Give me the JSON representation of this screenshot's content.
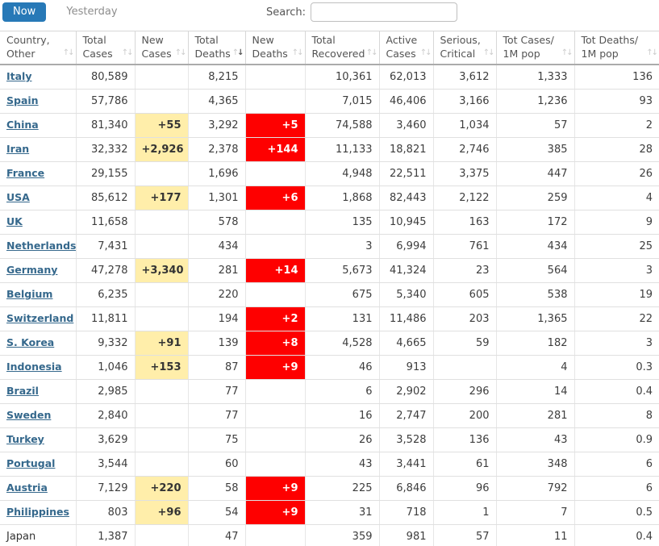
{
  "toolbar": {
    "now_label": "Now",
    "yesterday_label": "Yesterday",
    "search_label": "Search:",
    "search_value": ""
  },
  "colors": {
    "now_button": "#2779b7",
    "country_link": "#35688c",
    "new_cases_highlight": "#ffeeaa",
    "new_deaths_highlight": "#fe0000",
    "header_text": "#545454",
    "cell_text": "#3d3d3d"
  },
  "table": {
    "columns": [
      {
        "key": "country",
        "lines": [
          "Country,",
          "Other"
        ],
        "sort": "none"
      },
      {
        "key": "total_cases",
        "lines": [
          "Total",
          "Cases"
        ],
        "sort": "none"
      },
      {
        "key": "new_cases",
        "lines": [
          "New",
          "Cases"
        ],
        "sort": "none"
      },
      {
        "key": "total_deaths",
        "lines": [
          "Total",
          "Deaths"
        ],
        "sort": "desc"
      },
      {
        "key": "new_deaths",
        "lines": [
          "New",
          "Deaths"
        ],
        "sort": "none"
      },
      {
        "key": "total_recovered",
        "lines": [
          "Total",
          "Recovered"
        ],
        "sort": "none"
      },
      {
        "key": "active_cases",
        "lines": [
          "Active",
          "Cases"
        ],
        "sort": "none"
      },
      {
        "key": "serious_critical",
        "lines": [
          "Serious,",
          "Critical"
        ],
        "sort": "none"
      },
      {
        "key": "cases_per_1m",
        "lines": [
          "Tot Cases/",
          "1M pop"
        ],
        "sort": "none"
      },
      {
        "key": "deaths_per_1m",
        "lines": [
          "Tot Deaths/",
          "1M pop"
        ],
        "sort": "none"
      }
    ],
    "rows": [
      {
        "country": "Italy",
        "link": true,
        "total_cases": "80,589",
        "new_cases": "",
        "total_deaths": "8,215",
        "new_deaths": "",
        "total_recovered": "10,361",
        "active_cases": "62,013",
        "serious_critical": "3,612",
        "cases_per_1m": "1,333",
        "deaths_per_1m": "136"
      },
      {
        "country": "Spain",
        "link": true,
        "total_cases": "57,786",
        "new_cases": "",
        "total_deaths": "4,365",
        "new_deaths": "",
        "total_recovered": "7,015",
        "active_cases": "46,406",
        "serious_critical": "3,166",
        "cases_per_1m": "1,236",
        "deaths_per_1m": "93"
      },
      {
        "country": "China",
        "link": true,
        "total_cases": "81,340",
        "new_cases": "+55",
        "total_deaths": "3,292",
        "new_deaths": "+5",
        "total_recovered": "74,588",
        "active_cases": "3,460",
        "serious_critical": "1,034",
        "cases_per_1m": "57",
        "deaths_per_1m": "2"
      },
      {
        "country": "Iran",
        "link": true,
        "total_cases": "32,332",
        "new_cases": "+2,926",
        "total_deaths": "2,378",
        "new_deaths": "+144",
        "total_recovered": "11,133",
        "active_cases": "18,821",
        "serious_critical": "2,746",
        "cases_per_1m": "385",
        "deaths_per_1m": "28"
      },
      {
        "country": "France",
        "link": true,
        "total_cases": "29,155",
        "new_cases": "",
        "total_deaths": "1,696",
        "new_deaths": "",
        "total_recovered": "4,948",
        "active_cases": "22,511",
        "serious_critical": "3,375",
        "cases_per_1m": "447",
        "deaths_per_1m": "26"
      },
      {
        "country": "USA",
        "link": true,
        "total_cases": "85,612",
        "new_cases": "+177",
        "total_deaths": "1,301",
        "new_deaths": "+6",
        "total_recovered": "1,868",
        "active_cases": "82,443",
        "serious_critical": "2,122",
        "cases_per_1m": "259",
        "deaths_per_1m": "4"
      },
      {
        "country": "UK",
        "link": true,
        "total_cases": "11,658",
        "new_cases": "",
        "total_deaths": "578",
        "new_deaths": "",
        "total_recovered": "135",
        "active_cases": "10,945",
        "serious_critical": "163",
        "cases_per_1m": "172",
        "deaths_per_1m": "9"
      },
      {
        "country": "Netherlands",
        "link": true,
        "total_cases": "7,431",
        "new_cases": "",
        "total_deaths": "434",
        "new_deaths": "",
        "total_recovered": "3",
        "active_cases": "6,994",
        "serious_critical": "761",
        "cases_per_1m": "434",
        "deaths_per_1m": "25"
      },
      {
        "country": "Germany",
        "link": true,
        "total_cases": "47,278",
        "new_cases": "+3,340",
        "total_deaths": "281",
        "new_deaths": "+14",
        "total_recovered": "5,673",
        "active_cases": "41,324",
        "serious_critical": "23",
        "cases_per_1m": "564",
        "deaths_per_1m": "3"
      },
      {
        "country": "Belgium",
        "link": true,
        "total_cases": "6,235",
        "new_cases": "",
        "total_deaths": "220",
        "new_deaths": "",
        "total_recovered": "675",
        "active_cases": "5,340",
        "serious_critical": "605",
        "cases_per_1m": "538",
        "deaths_per_1m": "19"
      },
      {
        "country": "Switzerland",
        "link": true,
        "total_cases": "11,811",
        "new_cases": "",
        "total_deaths": "194",
        "new_deaths": "+2",
        "total_recovered": "131",
        "active_cases": "11,486",
        "serious_critical": "203",
        "cases_per_1m": "1,365",
        "deaths_per_1m": "22"
      },
      {
        "country": "S. Korea",
        "link": true,
        "total_cases": "9,332",
        "new_cases": "+91",
        "total_deaths": "139",
        "new_deaths": "+8",
        "total_recovered": "4,528",
        "active_cases": "4,665",
        "serious_critical": "59",
        "cases_per_1m": "182",
        "deaths_per_1m": "3"
      },
      {
        "country": "Indonesia",
        "link": true,
        "total_cases": "1,046",
        "new_cases": "+153",
        "total_deaths": "87",
        "new_deaths": "+9",
        "total_recovered": "46",
        "active_cases": "913",
        "serious_critical": "",
        "cases_per_1m": "4",
        "deaths_per_1m": "0.3"
      },
      {
        "country": "Brazil",
        "link": true,
        "total_cases": "2,985",
        "new_cases": "",
        "total_deaths": "77",
        "new_deaths": "",
        "total_recovered": "6",
        "active_cases": "2,902",
        "serious_critical": "296",
        "cases_per_1m": "14",
        "deaths_per_1m": "0.4"
      },
      {
        "country": "Sweden",
        "link": true,
        "total_cases": "2,840",
        "new_cases": "",
        "total_deaths": "77",
        "new_deaths": "",
        "total_recovered": "16",
        "active_cases": "2,747",
        "serious_critical": "200",
        "cases_per_1m": "281",
        "deaths_per_1m": "8"
      },
      {
        "country": "Turkey",
        "link": true,
        "total_cases": "3,629",
        "new_cases": "",
        "total_deaths": "75",
        "new_deaths": "",
        "total_recovered": "26",
        "active_cases": "3,528",
        "serious_critical": "136",
        "cases_per_1m": "43",
        "deaths_per_1m": "0.9"
      },
      {
        "country": "Portugal",
        "link": true,
        "total_cases": "3,544",
        "new_cases": "",
        "total_deaths": "60",
        "new_deaths": "",
        "total_recovered": "43",
        "active_cases": "3,441",
        "serious_critical": "61",
        "cases_per_1m": "348",
        "deaths_per_1m": "6"
      },
      {
        "country": "Austria",
        "link": true,
        "total_cases": "7,129",
        "new_cases": "+220",
        "total_deaths": "58",
        "new_deaths": "+9",
        "total_recovered": "225",
        "active_cases": "6,846",
        "serious_critical": "96",
        "cases_per_1m": "792",
        "deaths_per_1m": "6"
      },
      {
        "country": "Philippines",
        "link": true,
        "total_cases": "803",
        "new_cases": "+96",
        "total_deaths": "54",
        "new_deaths": "+9",
        "total_recovered": "31",
        "active_cases": "718",
        "serious_critical": "1",
        "cases_per_1m": "7",
        "deaths_per_1m": "0.5"
      },
      {
        "country": "Japan",
        "link": false,
        "total_cases": "1,387",
        "new_cases": "",
        "total_deaths": "47",
        "new_deaths": "",
        "total_recovered": "359",
        "active_cases": "981",
        "serious_critical": "57",
        "cases_per_1m": "11",
        "deaths_per_1m": "0.4"
      }
    ]
  }
}
